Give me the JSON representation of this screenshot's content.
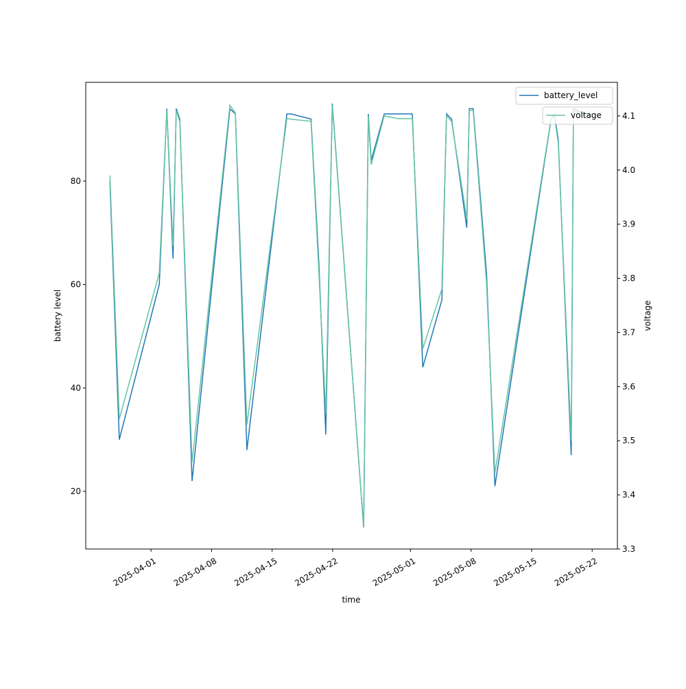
{
  "chart_data": {
    "type": "line",
    "xlabel": "time",
    "ylabel": "battery level",
    "ylabel_right": "voltage",
    "xlim": [
      "2025-03-24T11:00",
      "2025-05-24T22:00"
    ],
    "ylim": [
      8.85,
      99.1
    ],
    "ylim_right": [
      3.3,
      4.162
    ],
    "xticks": [
      "2025-04-01",
      "2025-04-08",
      "2025-04-15",
      "2025-04-22",
      "2025-05-01",
      "2025-05-08",
      "2025-05-15",
      "2025-05-22"
    ],
    "yticks": [
      20,
      40,
      60,
      80
    ],
    "yticks_right": [
      "3.3",
      "3.4",
      "3.5",
      "3.6",
      "3.7",
      "3.8",
      "3.9",
      "4.0",
      "4.1"
    ],
    "legend": [
      {
        "label": "battery_level",
        "placement": "top-right"
      },
      {
        "label": "voltage",
        "placement": "top-right"
      }
    ],
    "x": [
      "2025-03-27T06:00",
      "2025-03-28T08:00",
      "2025-04-01T23:00",
      "2025-04-02T20:00",
      "2025-04-03T13:00",
      "2025-04-03T22:00",
      "2025-04-04T08:00",
      "2025-04-05T18:00",
      "2025-04-10T03:00",
      "2025-04-10T18:00",
      "2025-04-12T02:00",
      "2025-04-16T17:00",
      "2025-04-17T04:00",
      "2025-04-19T12:00",
      "2025-04-20T10:00",
      "2025-04-21T05:00",
      "2025-04-21T23:00",
      "2025-04-25T14:00",
      "2025-04-26T03:00",
      "2025-04-26T11:00",
      "2025-04-27T23:00",
      "2025-04-29T13:00",
      "2025-05-01T05:00",
      "2025-05-02T10:00",
      "2025-05-04T15:00",
      "2025-05-05T04:00",
      "2025-05-05T18:00",
      "2025-05-07T12:00",
      "2025-05-07T19:00",
      "2025-05-08T06:00",
      "2025-05-09T19:00",
      "2025-05-10T18:00",
      "2025-05-17T06:00",
      "2025-05-17T15:00",
      "2025-05-18T02:00",
      "2025-05-19T14:00",
      "2025-05-19T20:00",
      "2025-05-21T03:00",
      "2025-05-22T02:00"
    ],
    "series": [
      {
        "name": "battery_level",
        "axis": "left",
        "color": "#1f77b4",
        "values": [
          80,
          30,
          60,
          94,
          65,
          94,
          92,
          22,
          94,
          93,
          28,
          93,
          93,
          92,
          64,
          31,
          95,
          13,
          93,
          84,
          93,
          93,
          93,
          44,
          57,
          93,
          92,
          71,
          94,
          94,
          62,
          21,
          92,
          93,
          88,
          27,
          94,
          93,
          93
        ]
      },
      {
        "name": "voltage",
        "axis": "right",
        "color": "#66c2a5",
        "values": [
          3.99,
          3.54,
          3.81,
          4.11,
          3.86,
          4.11,
          4.09,
          3.46,
          4.12,
          4.105,
          3.53,
          4.095,
          4.094,
          4.09,
          3.81,
          3.55,
          4.12,
          3.34,
          4.1,
          4.01,
          4.1,
          4.095,
          4.095,
          3.67,
          3.78,
          4.1,
          4.09,
          3.91,
          4.11,
          4.11,
          3.79,
          3.44,
          4.095,
          4.1,
          4.05,
          3.5,
          4.11,
          4.1,
          4.1
        ]
      }
    ]
  }
}
